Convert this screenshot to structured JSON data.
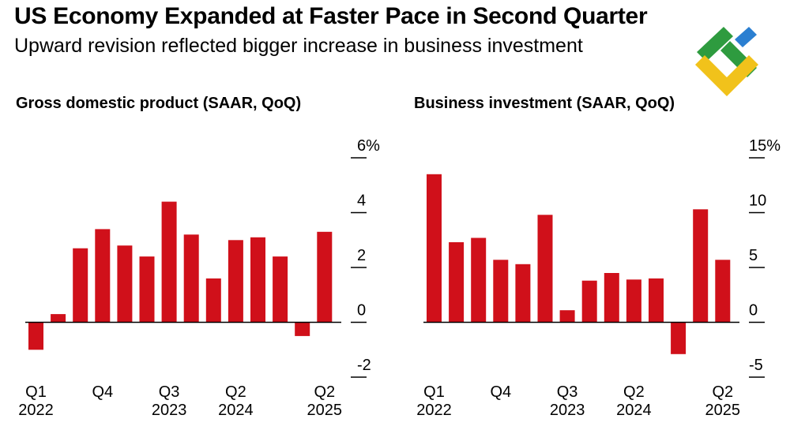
{
  "header": {
    "title": "US Economy Expanded at Faster Pace in Second Quarter",
    "subtitle": "Upward revision reflected bigger increase in business investment"
  },
  "logo": {
    "icon": "brand-logo-icon",
    "colors": [
      "#2e9b3f",
      "#f1c21b",
      "#2b7fd1"
    ]
  },
  "colors": {
    "bar": "#d0101a",
    "axis": "#000000",
    "background": "#ffffff"
  },
  "chart_data": [
    {
      "type": "bar",
      "title": "Gross domestic product (SAAR, QoQ)",
      "categories": [
        "Q1 2022",
        "Q2 2022",
        "Q3 2022",
        "Q4 2022",
        "Q1 2023",
        "Q2 2023",
        "Q3 2023",
        "Q4 2023",
        "Q1 2024",
        "Q2 2024",
        "Q3 2024",
        "Q4 2024",
        "Q1 2025",
        "Q2 2025"
      ],
      "values": [
        -1.0,
        0.3,
        2.7,
        3.4,
        2.8,
        2.4,
        4.4,
        3.2,
        1.6,
        3.0,
        3.1,
        2.4,
        -0.5,
        3.3
      ],
      "ylim": [
        -2,
        6
      ],
      "yticks": [
        {
          "value": 6,
          "label": "6%"
        },
        {
          "value": 4,
          "label": "4"
        },
        {
          "value": 2,
          "label": "2"
        },
        {
          "value": 0,
          "label": "0"
        },
        {
          "value": -2,
          "label": "-2"
        }
      ],
      "xticks": [
        {
          "index": 0,
          "label": "Q1",
          "sublabel": "2022"
        },
        {
          "index": 3,
          "label": "Q4",
          "sublabel": ""
        },
        {
          "index": 6,
          "label": "Q3",
          "sublabel": "2023"
        },
        {
          "index": 9,
          "label": "Q2",
          "sublabel": "2024"
        },
        {
          "index": 13,
          "label": "Q2",
          "sublabel": "2025"
        }
      ],
      "xlabel": "",
      "ylabel": "",
      "grid": false
    },
    {
      "type": "bar",
      "title": "Business investment (SAAR, QoQ)",
      "categories": [
        "Q1 2022",
        "Q2 2022",
        "Q3 2022",
        "Q4 2022",
        "Q1 2023",
        "Q2 2023",
        "Q3 2023",
        "Q4 2023",
        "Q1 2024",
        "Q2 2024",
        "Q3 2024",
        "Q4 2024",
        "Q1 2025",
        "Q2 2025"
      ],
      "values": [
        13.5,
        7.3,
        7.7,
        5.7,
        5.3,
        9.8,
        1.1,
        3.8,
        4.5,
        3.9,
        4.0,
        -2.9,
        10.3,
        5.7
      ],
      "ylim": [
        -5,
        15
      ],
      "yticks": [
        {
          "value": 15,
          "label": "15%"
        },
        {
          "value": 10,
          "label": "10"
        },
        {
          "value": 5,
          "label": "5"
        },
        {
          "value": 0,
          "label": "0"
        },
        {
          "value": -5,
          "label": "-5"
        }
      ],
      "xticks": [
        {
          "index": 0,
          "label": "Q1",
          "sublabel": "2022"
        },
        {
          "index": 3,
          "label": "Q4",
          "sublabel": ""
        },
        {
          "index": 6,
          "label": "Q3",
          "sublabel": "2023"
        },
        {
          "index": 9,
          "label": "Q2",
          "sublabel": "2024"
        },
        {
          "index": 13,
          "label": "Q2",
          "sublabel": "2025"
        }
      ],
      "xlabel": "",
      "ylabel": "",
      "grid": false
    }
  ]
}
